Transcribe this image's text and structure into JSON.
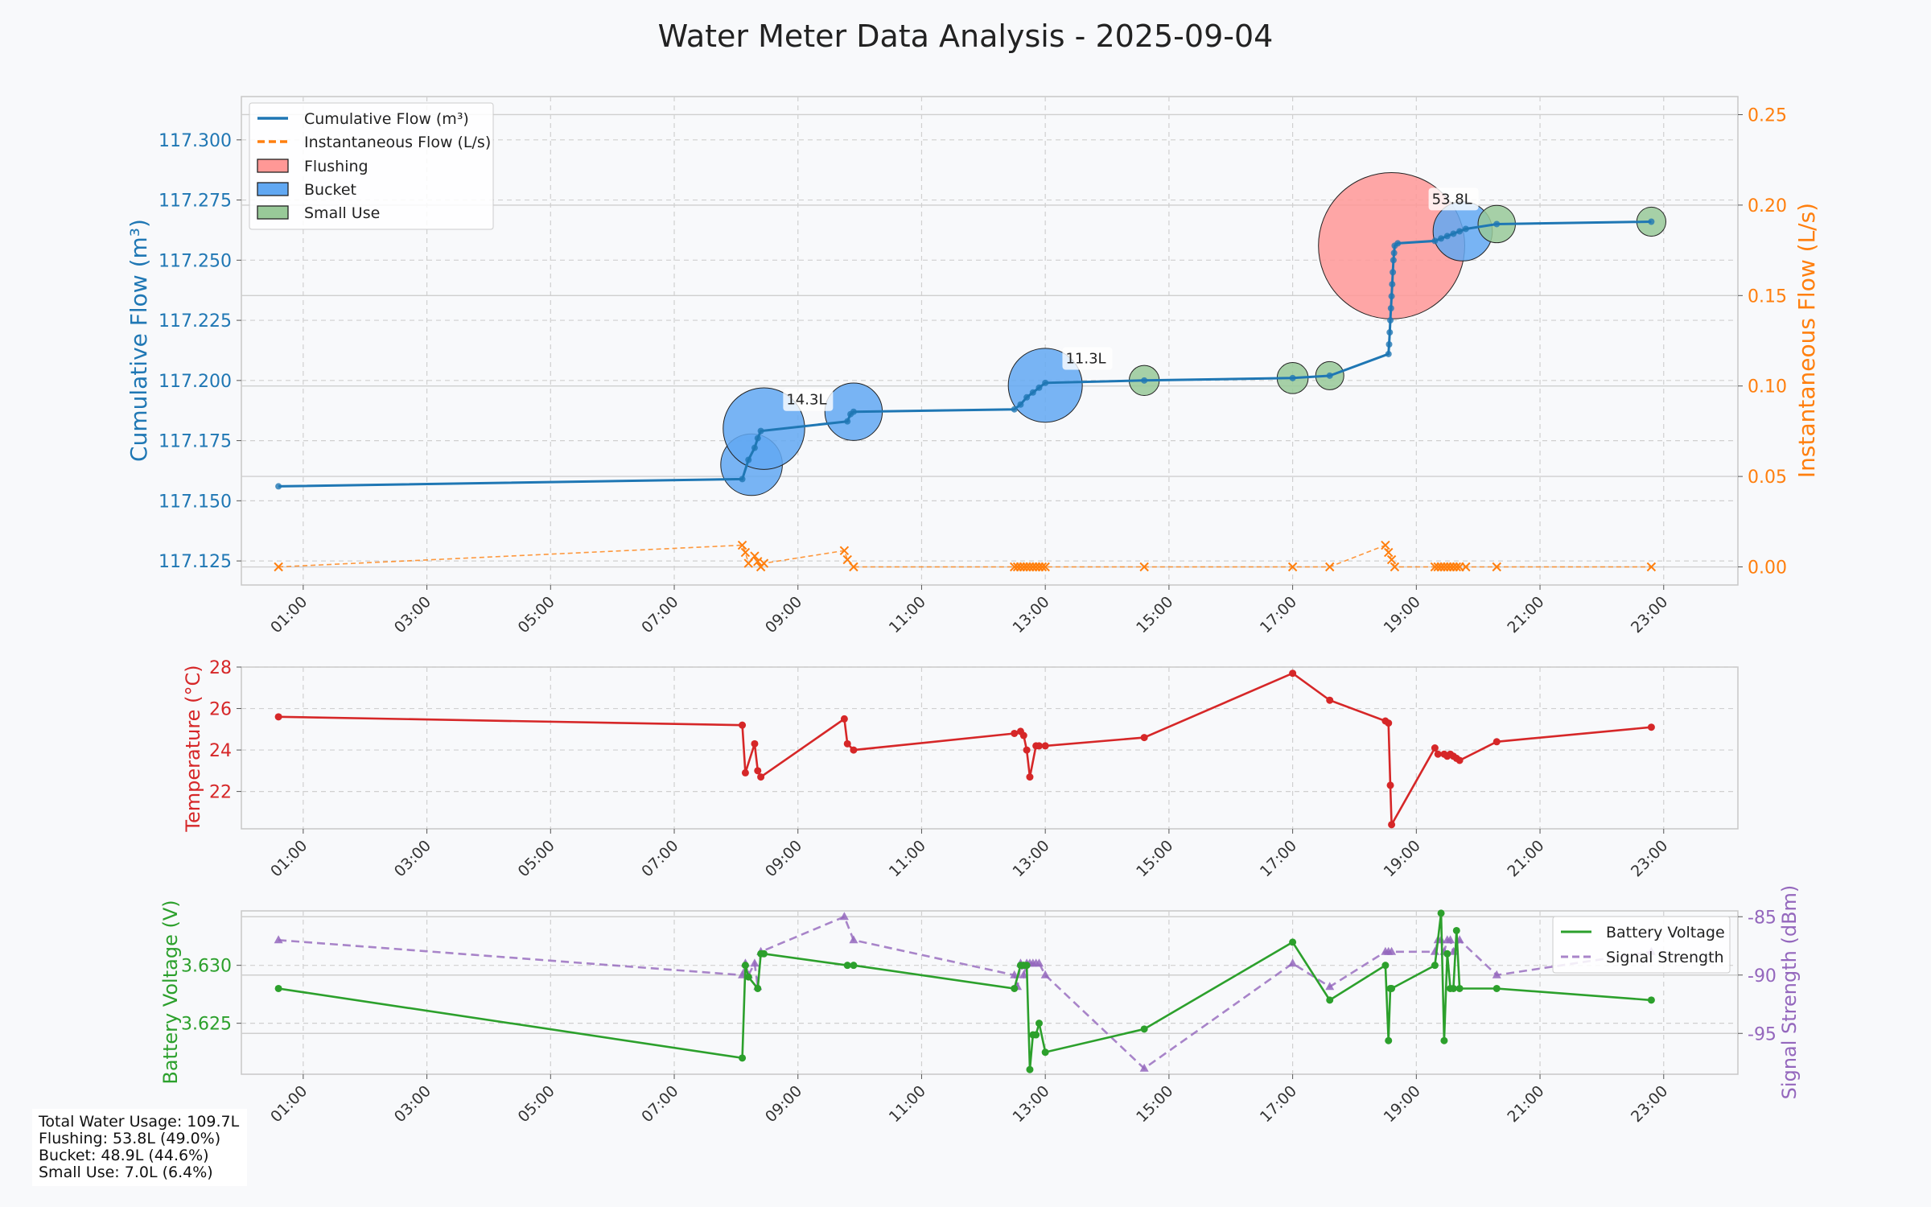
{
  "title": "Water Meter Data Analysis - 2025-09-04",
  "colors": {
    "flow": "#1f77b4",
    "inst": "#ff7f0e",
    "temp": "#d62728",
    "battery": "#2ca02c",
    "signal": "#9467bd",
    "flushing": "#ff9896",
    "bucket": "#61a8f2",
    "small": "#98c998"
  },
  "chart_data": [
    {
      "type": "line",
      "title": "Water Meter Data Analysis - 2025-09-04",
      "ylabel": "Cumulative Flow (m³)",
      "ylabel2": "Instantaneous Flow (L/s)",
      "xticks": [
        "01:00",
        "03:00",
        "05:00",
        "07:00",
        "09:00",
        "11:00",
        "13:00",
        "15:00",
        "17:00",
        "19:00",
        "21:00",
        "23:00"
      ],
      "ylim": [
        117.115,
        117.318
      ],
      "yticks": [
        117.125,
        117.15,
        117.175,
        117.2,
        117.225,
        117.25,
        117.275,
        117.3
      ],
      "y2lim": [
        -0.01,
        0.26
      ],
      "y2ticks": [
        0.0,
        0.05,
        0.1,
        0.15,
        0.2,
        0.25
      ],
      "legend": [
        "Cumulative Flow (m³)",
        "Instantaneous Flow (L/s)",
        "Flushing",
        "Bucket",
        "Small Use"
      ],
      "legend_position": "upper-left",
      "grid": true,
      "series": [
        {
          "name": "Cumulative Flow (m³)",
          "x": [
            0.6,
            8.1,
            8.2,
            8.3,
            8.35,
            8.4,
            9.8,
            9.85,
            9.9,
            12.5,
            12.6,
            12.7,
            12.8,
            12.9,
            13.0,
            14.6,
            17.0,
            17.6,
            18.55,
            18.56,
            18.57,
            18.58,
            18.59,
            18.6,
            18.61,
            18.62,
            18.63,
            18.64,
            18.65,
            18.7,
            19.3,
            19.4,
            19.5,
            19.6,
            19.7,
            19.8,
            20.3,
            22.8
          ],
          "y": [
            117.156,
            117.159,
            117.167,
            117.172,
            117.176,
            117.179,
            117.183,
            117.186,
            117.187,
            117.188,
            117.19,
            117.193,
            117.195,
            117.197,
            117.199,
            117.2,
            117.201,
            117.202,
            117.211,
            117.215,
            117.22,
            117.225,
            117.23,
            117.235,
            117.24,
            117.245,
            117.25,
            117.253,
            117.256,
            117.257,
            117.258,
            117.259,
            117.26,
            117.261,
            117.262,
            117.263,
            117.265,
            117.266
          ]
        },
        {
          "name": "Instantaneous Flow (L/s)",
          "axis": "right",
          "x": [
            0.6,
            8.1,
            8.15,
            8.2,
            8.3,
            8.35,
            8.4,
            8.45,
            9.75,
            9.8,
            9.9,
            12.5,
            12.55,
            12.6,
            12.65,
            12.7,
            12.75,
            12.8,
            12.85,
            12.9,
            12.95,
            13.0,
            14.6,
            17.0,
            17.6,
            18.5,
            18.55,
            18.6,
            18.65,
            19.3,
            19.35,
            19.4,
            19.45,
            19.5,
            19.55,
            19.6,
            19.65,
            19.7,
            19.8,
            20.3,
            22.8
          ],
          "y": [
            0.0,
            0.012,
            0.008,
            0.002,
            0.006,
            0.003,
            0.0,
            0.002,
            0.009,
            0.004,
            0.0,
            0.0,
            0.0,
            0.0,
            0.0,
            0.0,
            0.0,
            0.0,
            0.0,
            0.0,
            0.0,
            0.0,
            0.0,
            0.0,
            0.0,
            0.012,
            0.008,
            0.004,
            0.0,
            0.0,
            0.0,
            0.0,
            0.0,
            0.0,
            0.0,
            0.0,
            0.0,
            0.0,
            0.0,
            0.0,
            0.0
          ]
        }
      ],
      "usage_events": [
        {
          "category": "Bucket",
          "x": 8.25,
          "y": 117.165,
          "volume_l": 7.2
        },
        {
          "category": "Bucket",
          "x": 8.45,
          "y": 117.18,
          "volume_l": 14.3,
          "label": "14.3L"
        },
        {
          "category": "Bucket",
          "x": 9.9,
          "y": 117.187,
          "volume_l": 6.0
        },
        {
          "category": "Bucket",
          "x": 13.0,
          "y": 117.198,
          "volume_l": 11.3,
          "label": "11.3L"
        },
        {
          "category": "Small Use",
          "x": 14.6,
          "y": 117.2,
          "volume_l": 0.9
        },
        {
          "category": "Small Use",
          "x": 17.0,
          "y": 117.201,
          "volume_l": 1.0
        },
        {
          "category": "Small Use",
          "x": 17.6,
          "y": 117.202,
          "volume_l": 0.7
        },
        {
          "category": "Flushing",
          "x": 18.6,
          "y": 117.256,
          "volume_l": 53.8,
          "label": "53.8L"
        },
        {
          "category": "Bucket",
          "x": 19.75,
          "y": 117.262,
          "volume_l": 6.5
        },
        {
          "category": "Small Use",
          "x": 20.3,
          "y": 117.265,
          "volume_l": 1.8
        },
        {
          "category": "Small Use",
          "x": 22.8,
          "y": 117.266,
          "volume_l": 0.8
        }
      ]
    },
    {
      "type": "line",
      "ylabel": "Temperature (°C)",
      "xticks": [
        "01:00",
        "03:00",
        "05:00",
        "07:00",
        "09:00",
        "11:00",
        "13:00",
        "15:00",
        "17:00",
        "19:00",
        "21:00",
        "23:00"
      ],
      "ylim": [
        20.2,
        28.0
      ],
      "yticks": [
        22,
        24,
        26,
        28
      ],
      "grid": true,
      "series": [
        {
          "name": "Temperature",
          "x": [
            0.6,
            8.1,
            8.15,
            8.3,
            8.35,
            8.4,
            9.75,
            9.8,
            9.9,
            12.5,
            12.6,
            12.65,
            12.7,
            12.75,
            12.85,
            12.9,
            13.0,
            14.6,
            17.0,
            17.6,
            18.5,
            18.55,
            18.58,
            18.6,
            19.3,
            19.35,
            19.45,
            19.5,
            19.55,
            19.6,
            19.65,
            19.7,
            20.3,
            22.8
          ],
          "y": [
            25.6,
            25.2,
            22.9,
            24.3,
            23.0,
            22.7,
            25.5,
            24.3,
            24.0,
            24.8,
            24.9,
            24.7,
            24.0,
            22.7,
            24.2,
            24.2,
            24.2,
            24.6,
            27.7,
            26.4,
            25.4,
            25.3,
            22.3,
            20.4,
            24.1,
            23.8,
            23.8,
            23.7,
            23.8,
            23.7,
            23.6,
            23.5,
            24.4,
            25.1
          ]
        }
      ]
    },
    {
      "type": "line",
      "ylabel": "Battery Voltage (V)",
      "ylabel2": "Signal Strength (dBm)",
      "xticks": [
        "01:00",
        "03:00",
        "05:00",
        "07:00",
        "09:00",
        "11:00",
        "13:00",
        "15:00",
        "17:00",
        "19:00",
        "21:00",
        "23:00"
      ],
      "ylim": [
        3.6206,
        3.6347
      ],
      "yticks": [
        3.625,
        3.63
      ],
      "y2lim": [
        -98.5,
        -84.5
      ],
      "y2ticks": [
        -85,
        -90,
        -95
      ],
      "legend": [
        "Battery Voltage",
        "Signal Strength"
      ],
      "legend_position": "upper-right",
      "grid": true,
      "series": [
        {
          "name": "Battery Voltage",
          "x": [
            0.6,
            8.1,
            8.15,
            8.2,
            8.35,
            8.4,
            8.45,
            9.8,
            9.9,
            12.5,
            12.6,
            12.65,
            12.7,
            12.75,
            12.8,
            12.85,
            12.9,
            13.0,
            14.6,
            17.0,
            17.6,
            18.5,
            18.55,
            18.58,
            18.6,
            19.3,
            19.4,
            19.45,
            19.5,
            19.55,
            19.6,
            19.65,
            19.7,
            20.3,
            22.8
          ],
          "y": [
            3.628,
            3.622,
            3.63,
            3.629,
            3.628,
            3.631,
            3.631,
            3.63,
            3.63,
            3.628,
            3.63,
            3.63,
            3.63,
            3.621,
            3.624,
            3.624,
            3.625,
            3.6225,
            3.6245,
            3.632,
            3.627,
            3.63,
            3.6235,
            3.628,
            3.628,
            3.63,
            3.6345,
            3.6235,
            3.631,
            3.628,
            3.628,
            3.633,
            3.628,
            3.628,
            3.627
          ]
        },
        {
          "name": "Signal Strength",
          "axis": "right",
          "x": [
            0.6,
            8.1,
            8.15,
            8.2,
            8.3,
            8.35,
            8.4,
            9.75,
            9.9,
            12.5,
            12.55,
            12.6,
            12.65,
            12.7,
            12.75,
            12.8,
            12.85,
            12.9,
            13.0,
            14.6,
            17.0,
            17.6,
            18.5,
            18.55,
            18.6,
            19.3,
            19.35,
            19.4,
            19.45,
            19.5,
            19.55,
            19.6,
            19.7,
            20.3,
            22.8
          ],
          "y": [
            -87,
            -90,
            -89,
            -90,
            -89,
            -91,
            -88,
            -85,
            -87,
            -90,
            -91,
            -89,
            -90,
            -89,
            -89,
            -89,
            -89,
            -89,
            -90,
            -98,
            -89,
            -91,
            -88,
            -88,
            -88,
            -88,
            -87,
            -87,
            -88,
            -87,
            -87,
            -88,
            -87,
            -90,
            -88
          ]
        }
      ]
    }
  ],
  "summary": {
    "total": "Total Water Usage: 109.7L",
    "flushing": "Flushing: 53.8L (49.0%)",
    "bucket": "Bucket: 48.9L (44.6%)",
    "small": "Small Use: 7.0L (6.4%)"
  }
}
